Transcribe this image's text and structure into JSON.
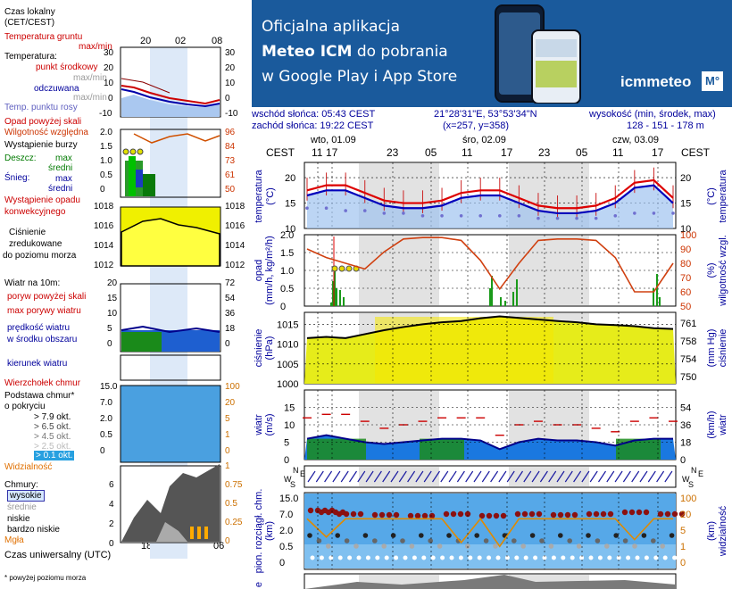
{
  "banner": {
    "line1": "Oficjalna aplikacja",
    "line2_bold": "Meteo ICM",
    "line2_rest": " do pobrania",
    "line3": "w Google Play i App Store",
    "logo_text": "icmmeteo",
    "logo_badge": "M°"
  },
  "info": {
    "sunrise": "wschód słońca: 05:43 CEST",
    "sunset": "zachód słońca: 19:22 CEST",
    "coords": "21°28'31\"E, 53°53'34\"N",
    "grid": "(x=257,  y=358)",
    "height_label": "wysokość (min, środek, max)",
    "height_value": "128 - 151 - 178 m"
  },
  "timeline": {
    "zone": "CEST",
    "days": [
      "wto, 01.09",
      "śro, 02.09",
      "czw, 03.09"
    ],
    "hours": [
      "11",
      "17",
      "23",
      "05",
      "11",
      "17",
      "23",
      "05",
      "11",
      "17"
    ]
  },
  "legend": {
    "local_time": "Czas lokalny",
    "local_time_zone": "(CET/CEST)",
    "legend_hours": [
      "20",
      "02",
      "08"
    ],
    "ground_temp": "Temperatura gruntu",
    "ground_temp_sub": "max/min",
    "temperature": "Temperatura:",
    "mid_point": "punkt środkowy",
    "max_min_1": "max/min",
    "feels_like": "odczuwana",
    "max_min_2": "max/min",
    "dew_point": "Temp. punktu rosy",
    "precip_above_scale": "Opad powyżej skali",
    "humidity": "Wilgotność względna",
    "storm": "Wystąpienie burzy",
    "rain": "Deszcz:",
    "max": "max",
    "mean": "średni",
    "snow": "Śnieg:",
    "precip_occurrence": "Wystąpienie opadu",
    "convective": "konwekcyjnego",
    "pressure_1": "Ciśnienie",
    "pressure_2": "zredukowane",
    "pressure_3": "do poziomu morza",
    "wind_10m": "Wiatr na 10m:",
    "gusts_above": "poryw powyżej skali",
    "max_gusts": "max porywy wiatru",
    "wind_speed": "prędkość wiatru",
    "wind_area": "w środku obszaru",
    "wind_dir": "kierunek wiatru",
    "cloud_top": "Wierzchołek chmur",
    "cloud_base": "Podstawa chmur*",
    "cloud_cover": "o pokryciu",
    "okt_79": "> 7.9 okt.",
    "okt_65": "> 6.5 okt.",
    "okt_45": "> 4.5 okt.",
    "okt_25": "> 2.5 okt.",
    "okt_01": "> 0.1 okt.",
    "visibility": "Widzialność",
    "clouds": "Chmury:",
    "high": "wysokie",
    "medium": "średnie",
    "low": "niskie",
    "very_low": "bardzo niskie",
    "fog": "Mgła",
    "utc": "Czas uniwersalny (UTC)",
    "utc_hours": [
      "18",
      "00",
      "06"
    ],
    "footnote": "* powyżej poziomu morza",
    "ticks_temp_left": [
      "30",
      "20",
      "10",
      "0",
      "-10"
    ],
    "ticks_temp_right": [
      "30",
      "20",
      "10",
      "0",
      "-10"
    ],
    "ticks_rain_left": [
      "2.0",
      "1.5",
      "1.0",
      "0.5",
      "0"
    ],
    "ticks_rain_right": [
      "96",
      "84",
      "73",
      "61",
      "50"
    ],
    "ticks_press_left": [
      "1018",
      "1016",
      "1014",
      "1012"
    ],
    "ticks_press_right": [
      "1018",
      "1016",
      "1014",
      "1012"
    ],
    "ticks_wind_left": [
      "20",
      "15",
      "10",
      "5",
      "0"
    ],
    "ticks_wind_right": [
      "72",
      "54",
      "36",
      "18",
      "0"
    ],
    "ticks_cb_left": [
      "15.0",
      "7.0",
      "2.0",
      "0.5",
      "0"
    ],
    "ticks_cb_right": [
      "100",
      "20",
      "5",
      "1",
      "0"
    ],
    "ticks_cl_left": [
      "6",
      "4",
      "2",
      "0"
    ],
    "ticks_cl_right": [
      "1",
      "0.75",
      "0.5",
      "0.25",
      "0"
    ]
  },
  "main_axes": {
    "temp_left_title": "temperatura",
    "temp_unit": "(°C)",
    "temp_right_title": "temperatura",
    "temp_ticks": [
      "20",
      "15",
      "10"
    ],
    "precip_left_title": "opad",
    "precip_unit": "(mm/h, kg/m²/h)",
    "precip_ticks": [
      "2.0",
      "1.5",
      "1.0",
      "0.5",
      "0"
    ],
    "hum_right_title": "wilgotność wzgl.",
    "hum_unit": "(%)",
    "hum_ticks": [
      "100",
      "90",
      "80",
      "70",
      "60",
      "50"
    ],
    "press_left_title": "ciśnienie",
    "press_unit": "(hPa)",
    "press_ticks": [
      "1015",
      "1010",
      "1005",
      "1000"
    ],
    "press_right_title": "ciśnienie",
    "press_unit_r": "(mm Hg)",
    "press_ticks_r": [
      "761",
      "758",
      "754",
      "750"
    ],
    "wind_left_title": "wiatr",
    "wind_unit": "(m/s)",
    "wind_ticks": [
      "15",
      "10",
      "5",
      "0"
    ],
    "wind_right_title": "wiatr",
    "wind_unit_r": "(km/h)",
    "wind_ticks_r": [
      "54",
      "36",
      "18",
      "0"
    ],
    "compass": [
      "W",
      "N",
      "E",
      "S"
    ],
    "cb_left_title": "pion. rozciągł. chm.",
    "cb_unit": "(km)",
    "cb_ticks": [
      "15.0",
      "7.0",
      "2.0",
      "0.5",
      "0"
    ],
    "vis_right_title": "widzialność",
    "vis_unit": "(km)",
    "vis_ticks": [
      "100",
      "20",
      "5",
      "1",
      "0"
    ],
    "bottom_label": "e"
  },
  "chart_data": [
    {
      "type": "line",
      "title": "temperatura",
      "ylabel": "(°C)",
      "ylim": [
        10,
        23
      ],
      "x": [
        "11",
        "14",
        "17",
        "20",
        "23",
        "02",
        "05",
        "08",
        "11",
        "14",
        "17",
        "20",
        "23",
        "02",
        "05",
        "08",
        "11",
        "14",
        "17",
        "20"
      ],
      "series": [
        {
          "name": "punkt środkowy",
          "values": [
            17.5,
            18.5,
            18.5,
            17,
            15.5,
            15,
            15,
            15.5,
            17,
            17.5,
            17.5,
            16,
            14.5,
            14,
            14,
            14.5,
            16,
            19,
            19.5,
            16
          ]
        },
        {
          "name": "odczuwana",
          "values": [
            16.5,
            17.5,
            17.5,
            16,
            14.5,
            14,
            14,
            14.5,
            16,
            16.5,
            16.5,
            15,
            13.5,
            13,
            13,
            13.5,
            15,
            18,
            18.5,
            15
          ]
        },
        {
          "name": "Temp. punktu rosy",
          "values": [
            14,
            14,
            13.5,
            13.5,
            13,
            13,
            12.5,
            12.5,
            12.5,
            12.5,
            12.5,
            12.5,
            12,
            12,
            12,
            12,
            12.5,
            13,
            13,
            13
          ]
        }
      ]
    },
    {
      "type": "line",
      "title": "opad / wilgotność wzgl.",
      "ylabel": "(mm/h, kg/m²/h)",
      "ylim": [
        0,
        2.0
      ],
      "x": [
        "11",
        "14",
        "17",
        "20",
        "23",
        "02",
        "05",
        "08",
        "11",
        "14",
        "17",
        "20",
        "23",
        "02",
        "05",
        "08",
        "11",
        "14",
        "17",
        "20"
      ],
      "series": [
        {
          "name": "Wilgotność względna",
          "values": [
            90,
            84,
            80,
            76,
            88,
            97,
            98,
            98,
            96,
            82,
            62,
            80,
            96,
            97,
            97,
            96,
            84,
            60,
            60,
            80
          ]
        }
      ]
    },
    {
      "type": "line",
      "title": "ciśnienie",
      "ylabel": "(hPa)",
      "ylim": [
        1000,
        1018
      ],
      "x": [
        "11",
        "14",
        "17",
        "20",
        "23",
        "02",
        "05",
        "08",
        "11",
        "14",
        "17",
        "20",
        "23",
        "02",
        "05",
        "08",
        "11",
        "14",
        "17",
        "20"
      ],
      "series": [
        {
          "name": "Ciśnienie",
          "values": [
            1011.5,
            1011.8,
            1011.5,
            1012.5,
            1013.5,
            1014.3,
            1015,
            1015.5,
            1015.8,
            1016.5,
            1017,
            1016.6,
            1016.2,
            1015.8,
            1015.5,
            1015,
            1014.8,
            1014.5,
            1014,
            1013.8
          ]
        }
      ]
    },
    {
      "type": "line",
      "title": "wiatr",
      "ylabel": "(m/s)",
      "ylim": [
        0,
        20
      ],
      "x": [
        "11",
        "14",
        "17",
        "20",
        "23",
        "02",
        "05",
        "08",
        "11",
        "14",
        "17",
        "20",
        "23",
        "02",
        "05",
        "08",
        "11",
        "14",
        "17",
        "20"
      ],
      "series": [
        {
          "name": "prędkość wiatru",
          "values": [
            6,
            7,
            6,
            5,
            4.5,
            5,
            5.5,
            6,
            6,
            5.5,
            3,
            5,
            6,
            5.5,
            5.5,
            5,
            4,
            5.5,
            6,
            6
          ]
        },
        {
          "name": "max porywy wiatru",
          "values": [
            12,
            13,
            13,
            11,
            9,
            10,
            11,
            12,
            12,
            12,
            7,
            10,
            11,
            10,
            10,
            9,
            8,
            11,
            12,
            11
          ]
        }
      ]
    },
    {
      "type": "line",
      "title": "widzialność",
      "ylabel": "(km)",
      "ylim": [
        0,
        100
      ],
      "x": [
        "11",
        "14",
        "17",
        "20",
        "23",
        "02",
        "05",
        "08",
        "11",
        "14",
        "17",
        "20",
        "23",
        "02",
        "05",
        "08",
        "11",
        "14",
        "17",
        "20"
      ],
      "series": [
        {
          "name": "Widzialność",
          "values": [
            20,
            6,
            20,
            20,
            20,
            20,
            20,
            20,
            4,
            20,
            3,
            20,
            20,
            20,
            20,
            20,
            20,
            5,
            20,
            20
          ]
        }
      ]
    }
  ]
}
